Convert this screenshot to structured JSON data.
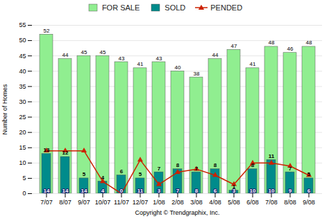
{
  "chart_data": {
    "type": "bar",
    "categories": [
      "7/07",
      "8/07",
      "9/07",
      "10/07",
      "11/07",
      "12/07",
      "1/08",
      "2/08",
      "3/08",
      "4/08",
      "5/08",
      "6/08",
      "7/08",
      "8/08",
      "9/08"
    ],
    "series": [
      {
        "name": "FOR SALE",
        "color": "#90EE90",
        "values": [
          52,
          44,
          45,
          45,
          43,
          41,
          43,
          40,
          38,
          44,
          47,
          41,
          48,
          46,
          48
        ]
      },
      {
        "name": "SOLD",
        "color": "#008B8B",
        "values": [
          13,
          12,
          5,
          4,
          6,
          5,
          7,
          8,
          7,
          8,
          1,
          8,
          11,
          7,
          5
        ]
      },
      {
        "name": "PENDED",
        "type": "line",
        "color": "#cc2200",
        "marker": "triangle",
        "values": [
          14,
          14,
          14,
          4,
          0,
          11,
          3,
          7,
          8,
          6,
          3,
          10,
          10,
          9,
          6
        ]
      }
    ],
    "xlabel": "Copyright © Trendgraphix, Inc.",
    "ylabel": "Number of Homes",
    "ylim": [
      0,
      55
    ],
    "yticks": [
      0,
      5,
      10,
      15,
      20,
      25,
      30,
      35,
      40,
      45,
      50,
      55
    ],
    "grid": true,
    "legend": "top",
    "data_labels": true
  }
}
